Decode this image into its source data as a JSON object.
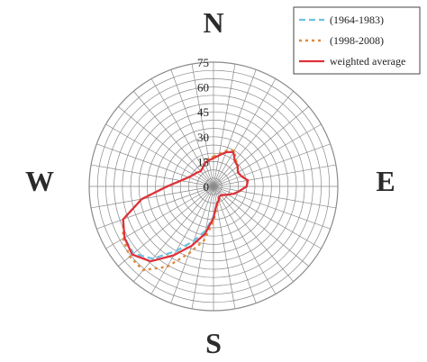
{
  "chart_data": {
    "type": "radar",
    "directions": {
      "north": "N",
      "east": "E",
      "south": "S",
      "west": "W"
    },
    "radial_ticks": [
      "0",
      "15",
      "30",
      "45",
      "60",
      "75"
    ],
    "rmax": 75,
    "sectors": 36,
    "angles_deg": [
      0,
      10,
      20,
      30,
      40,
      50,
      60,
      70,
      80,
      90,
      100,
      110,
      120,
      130,
      140,
      150,
      160,
      170,
      180,
      190,
      200,
      210,
      220,
      230,
      240,
      250,
      260,
      270,
      280,
      290,
      300,
      310,
      320,
      330,
      340,
      350
    ],
    "series": [
      {
        "name": "(1964-1983)",
        "color": "#6ec1e4",
        "style": "dashed",
        "values": [
          17,
          19,
          22,
          24,
          20,
          19,
          17,
          18,
          21,
          20,
          16,
          13,
          10,
          8,
          7,
          7,
          9,
          11,
          18,
          27,
          35,
          45,
          57,
          63,
          62,
          58,
          44,
          28,
          20,
          16,
          14,
          13,
          12,
          13,
          15,
          16
        ]
      },
      {
        "name": "(1998-2008)",
        "color": "#e08a3c",
        "style": "dotted",
        "values": [
          18,
          20,
          23,
          25,
          21,
          19,
          17,
          18,
          21,
          20,
          16,
          13,
          10,
          8,
          7,
          7,
          10,
          12,
          21,
          33,
          43,
          56,
          66,
          66,
          63,
          58,
          44,
          28,
          20,
          16,
          14,
          13,
          12,
          13,
          15,
          17
        ]
      },
      {
        "name": "weighted average",
        "color": "#e0303a",
        "style": "solid",
        "values": [
          17,
          19,
          22,
          24,
          20,
          19,
          17,
          18,
          21,
          20,
          16,
          13,
          10,
          8,
          7,
          7,
          9,
          11,
          19,
          29,
          38,
          48,
          59,
          64,
          62,
          58,
          44,
          28,
          20,
          16,
          14,
          13,
          12,
          13,
          15,
          16
        ]
      }
    ],
    "grid": true,
    "legend_position": "top-right"
  }
}
